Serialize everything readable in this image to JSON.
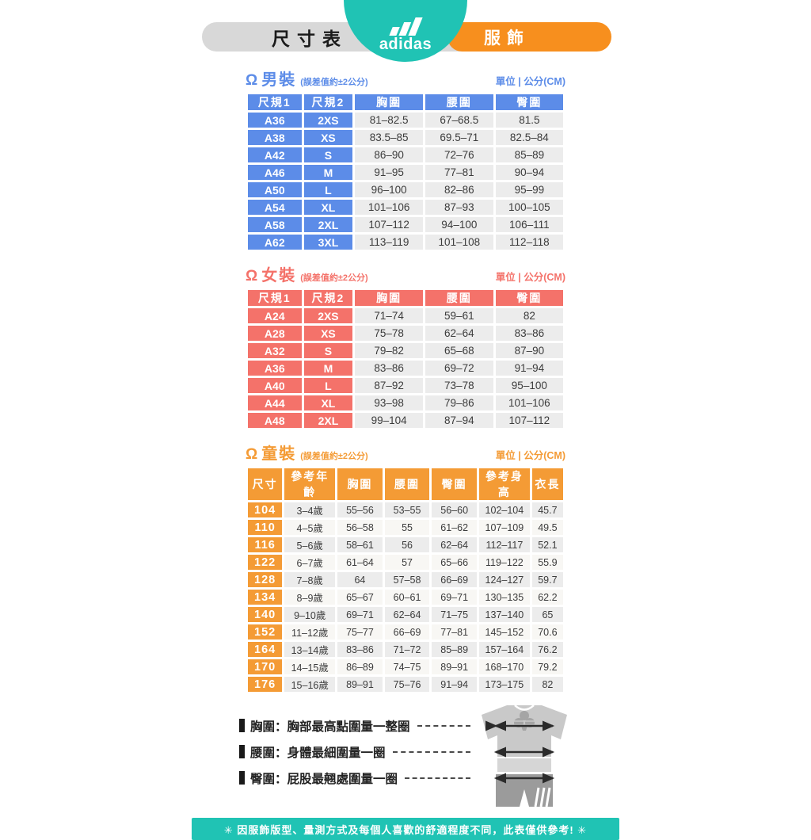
{
  "header": {
    "size_chart_label": "尺寸表",
    "brand": "adidas",
    "category_label": "服飾"
  },
  "colors": {
    "teal": "#20C3B4",
    "header_orange": "#F78F1E",
    "header_gray": "#D8D8D8",
    "men_blue": "#5C8CE8",
    "women_coral": "#F4726A",
    "kids_orange": "#F49B35"
  },
  "icons": {
    "person": "Ω"
  },
  "sections": [
    {
      "id": "men",
      "title": "男裝",
      "tolerance_note": "(誤差值約±2公分)",
      "unit_label": "單位 | 公分(CM)",
      "accent": "#5C8CE8",
      "key_cols": 2,
      "zebra": false,
      "columns": [
        "尺規1",
        "尺規2",
        "胸圍",
        "腰圍",
        "臀圍"
      ],
      "col_widths": [
        "17.5%",
        "16%",
        "22.2%",
        "22.2%",
        "22.1%"
      ],
      "rows": [
        [
          "A36",
          "2XS",
          "81–82.5",
          "67–68.5",
          "81.5"
        ],
        [
          "A38",
          "XS",
          "83.5–85",
          "69.5–71",
          "82.5–84"
        ],
        [
          "A42",
          "S",
          "86–90",
          "72–76",
          "85–89"
        ],
        [
          "A46",
          "M",
          "91–95",
          "77–81",
          "90–94"
        ],
        [
          "A50",
          "L",
          "96–100",
          "82–86",
          "95–99"
        ],
        [
          "A54",
          "XL",
          "101–106",
          "87–93",
          "100–105"
        ],
        [
          "A58",
          "2XL",
          "107–112",
          "94–100",
          "106–111"
        ],
        [
          "A62",
          "3XL",
          "113–119",
          "101–108",
          "112–118"
        ]
      ]
    },
    {
      "id": "women",
      "title": "女裝",
      "tolerance_note": "(誤差值約±2公分)",
      "unit_label": "單位 | 公分(CM)",
      "accent": "#F4726A",
      "key_cols": 2,
      "zebra": false,
      "columns": [
        "尺規1",
        "尺規2",
        "胸圍",
        "腰圍",
        "臀圍"
      ],
      "col_widths": [
        "17.5%",
        "16%",
        "22.2%",
        "22.2%",
        "22.1%"
      ],
      "rows": [
        [
          "A24",
          "2XS",
          "71–74",
          "59–61",
          "82"
        ],
        [
          "A28",
          "XS",
          "75–78",
          "62–64",
          "83–86"
        ],
        [
          "A32",
          "S",
          "79–82",
          "65–68",
          "87–90"
        ],
        [
          "A36",
          "M",
          "83–86",
          "69–72",
          "91–94"
        ],
        [
          "A40",
          "L",
          "87–92",
          "73–78",
          "95–100"
        ],
        [
          "A44",
          "XL",
          "93–98",
          "79–86",
          "101–106"
        ],
        [
          "A48",
          "2XL",
          "99–104",
          "87–94",
          "107–112"
        ]
      ]
    },
    {
      "id": "kids",
      "title": "童裝",
      "tolerance_note": "(誤差值約±2公分)",
      "unit_label": "單位 | 公分(CM)",
      "accent": "#F49B35",
      "key_cols": 1,
      "zebra": true,
      "columns": [
        "尺寸",
        "參考年齡",
        "胸圍",
        "腰圍",
        "臀圍",
        "參考身高",
        "衣長"
      ],
      "col_widths": [
        "11.4%",
        "16.8%",
        "14.9%",
        "14.9%",
        "14.9%",
        "16.8%",
        "10.3%"
      ],
      "rows": [
        [
          "104",
          "3–4歲",
          "55–56",
          "53–55",
          "56–60",
          "102–104",
          "45.7"
        ],
        [
          "110",
          "4–5歲",
          "56–58",
          "55",
          "61–62",
          "107–109",
          "49.5"
        ],
        [
          "116",
          "5–6歲",
          "58–61",
          "56",
          "62–64",
          "112–117",
          "52.1"
        ],
        [
          "122",
          "6–7歲",
          "61–64",
          "57",
          "65–66",
          "119–122",
          "55.9"
        ],
        [
          "128",
          "7–8歲",
          "64",
          "57–58",
          "66–69",
          "124–127",
          "59.7"
        ],
        [
          "134",
          "8–9歲",
          "65–67",
          "60–61",
          "69–71",
          "130–135",
          "62.2"
        ],
        [
          "140",
          "9–10歲",
          "69–71",
          "62–64",
          "71–75",
          "137–140",
          "65"
        ],
        [
          "152",
          "11–12歲",
          "75–77",
          "66–69",
          "77–81",
          "145–152",
          "70.6"
        ],
        [
          "164",
          "13–14歲",
          "83–86",
          "71–72",
          "85–89",
          "157–164",
          "76.2"
        ],
        [
          "170",
          "14–15歲",
          "86–89",
          "74–75",
          "89–91",
          "168–170",
          "79.2"
        ],
        [
          "176",
          "15–16歲",
          "89–91",
          "75–76",
          "91–94",
          "173–175",
          "82"
        ]
      ]
    }
  ],
  "measure_notes": [
    {
      "text": "胸圍：胸部最高點圍量一整圈"
    },
    {
      "text": "腰圍：身體最細圍量一圈"
    },
    {
      "text": "臀圍：屁股最翹處圍量一圈"
    }
  ],
  "footer": {
    "note": "✳ 因服飾版型、量測方式及每個人喜歡的舒適程度不同，此表僅供參考! ✳"
  }
}
